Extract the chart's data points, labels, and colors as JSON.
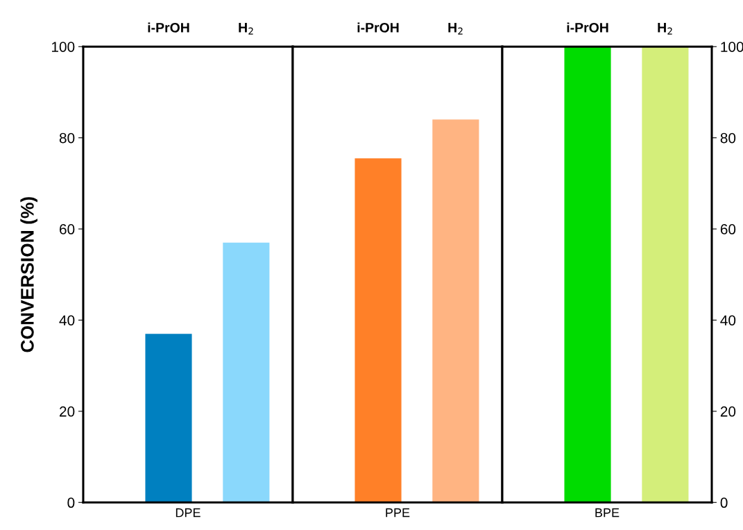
{
  "chart_data": [
    {
      "type": "bar",
      "ylabel": "CONVERSION (%)",
      "xlabel": "DPE",
      "categories": [
        "i-PrOH",
        "H$_{2}$"
      ],
      "ylim": [
        0,
        100
      ],
      "yticks": [
        0,
        20,
        40,
        60,
        80,
        100
      ],
      "colors": [
        "#0080c0",
        "#8ad8fc"
      ],
      "values": [
        37,
        57
      ]
    },
    {
      "type": "bar",
      "xlabel": "PPE",
      "categories": [
        "i-PrOH",
        "H$_{2}$"
      ],
      "ylim": [
        0,
        100
      ],
      "tick_labels": "x",
      "colors": [
        "#ff8028",
        "#ffb482"
      ],
      "values": [
        75.5,
        84
      ]
    },
    {
      "type": "bar",
      "xlabel": "BPE",
      "categories": [
        "i-PrOH",
        "H$_{2}$"
      ],
      "ylim": [
        0,
        100
      ],
      "yticks": [
        0,
        20,
        40,
        60,
        80,
        100
      ],
      "colors": [
        "#00dc00",
        "#d4ee7a"
      ],
      "values": [
        100,
        100
      ]
    }
  ]
}
